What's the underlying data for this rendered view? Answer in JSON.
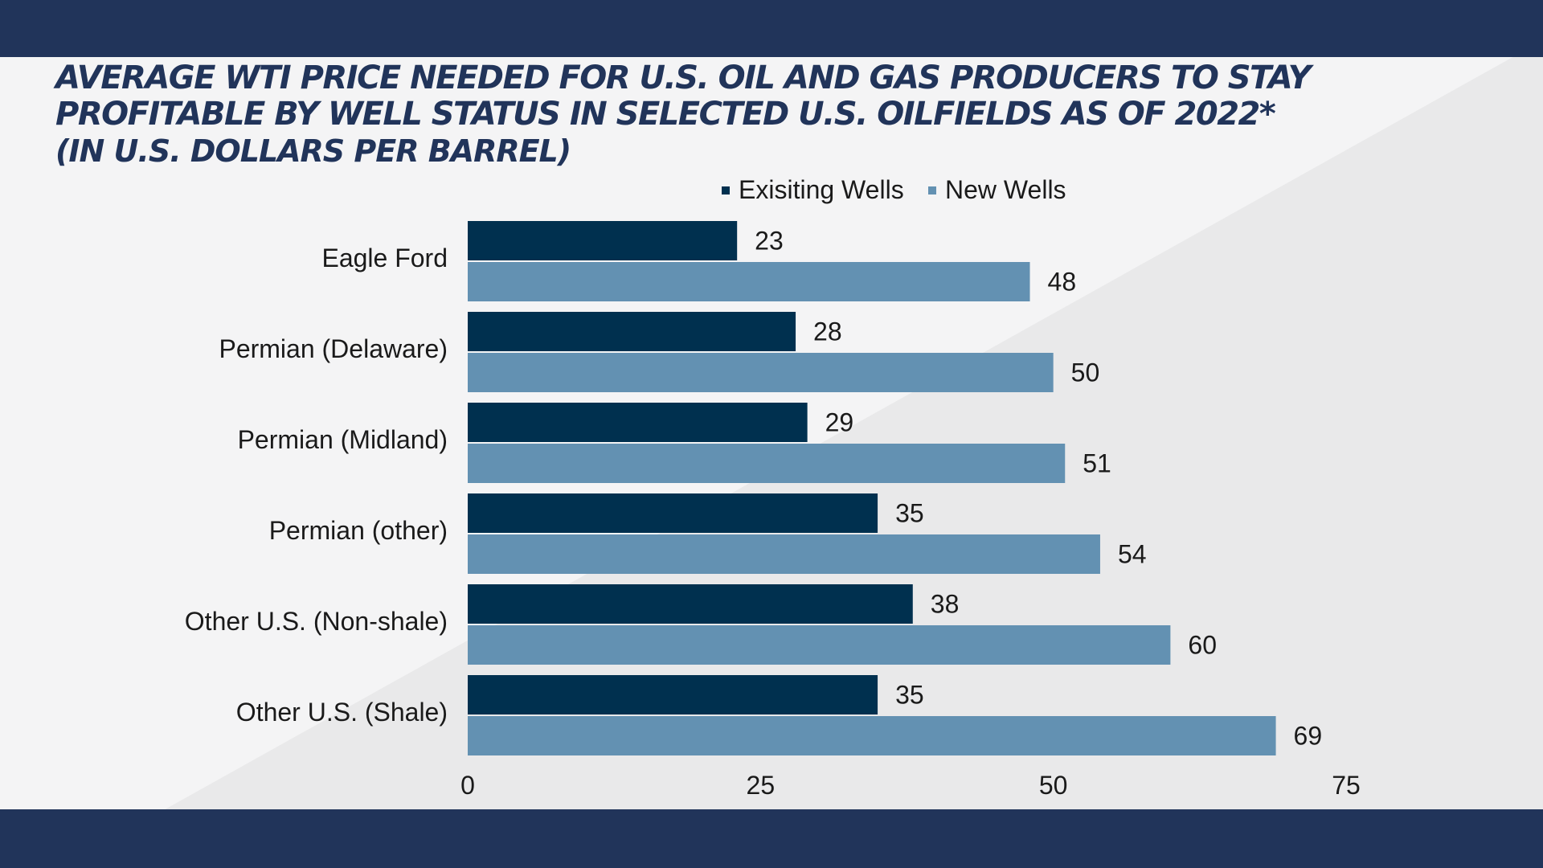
{
  "title_lines": [
    "AVERAGE WTI PRICE NEEDED FOR U.S. OIL AND GAS PRODUCERS TO STAY",
    "PROFITABLE BY WELL STATUS IN SELECTED U.S. OILFIELDS AS OF 2022*"
  ],
  "subtitle": "(IN U.S. DOLLARS PER BARREL)",
  "colors": {
    "band": "#21345a",
    "title": "#21345a",
    "existing": "#00304f",
    "new": "#6391b2",
    "background": "#f4f4f5",
    "background_shade": "#e9e9ea",
    "text": "#1a1a1a"
  },
  "chart_data": {
    "type": "bar",
    "orientation": "horizontal",
    "title": "AVERAGE WTI PRICE NEEDED FOR U.S. OIL AND GAS PRODUCERS TO STAY PROFITABLE BY WELL STATUS IN SELECTED U.S. OILFIELDS AS OF 2022*",
    "subtitle": "(IN U.S. DOLLARS PER BARREL)",
    "categories": [
      "Eagle Ford",
      "Permian (Delaware)",
      "Permian (Midland)",
      "Permian (other)",
      "Other U.S. (Non-shale)",
      "Other U.S. (Shale)"
    ],
    "series": [
      {
        "name": "Exisiting Wells",
        "values": [
          23,
          28,
          29,
          35,
          38,
          35
        ]
      },
      {
        "name": "New Wells",
        "values": [
          48,
          50,
          51,
          54,
          60,
          69
        ]
      }
    ],
    "xlim": [
      0,
      75
    ],
    "xticks": [
      0,
      25,
      50,
      75
    ],
    "grid": false,
    "legend": "top-center",
    "data_labels": true
  }
}
